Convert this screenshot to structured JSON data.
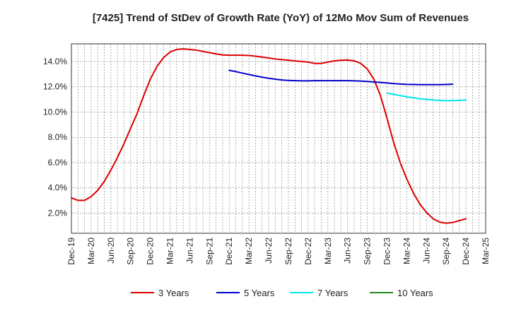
{
  "chart_data": {
    "type": "line",
    "title": "[7425]  Trend of StDev of Growth Rate (YoY) of 12Mo Mov Sum of Revenues",
    "xlabel": "",
    "ylabel": "",
    "ylim": [
      0.4,
      15.4
    ],
    "yticks": [
      {
        "value": 2.0,
        "label": "2.0%"
      },
      {
        "value": 4.0,
        "label": "4.0%"
      },
      {
        "value": 6.0,
        "label": "6.0%"
      },
      {
        "value": 8.0,
        "label": "8.0%"
      },
      {
        "value": 10.0,
        "label": "10.0%"
      },
      {
        "value": 12.0,
        "label": "12.0%"
      },
      {
        "value": 14.0,
        "label": "14.0%"
      }
    ],
    "xticks": [
      "Dec-19",
      "Mar-20",
      "Jun-20",
      "Sep-20",
      "Dec-20",
      "Mar-21",
      "Jun-21",
      "Sep-21",
      "Dec-21",
      "Mar-22",
      "Jun-22",
      "Sep-22",
      "Dec-22",
      "Mar-23",
      "Jun-23",
      "Sep-23",
      "Dec-23",
      "Mar-24",
      "Jun-24",
      "Sep-24",
      "Dec-24",
      "Mar-25"
    ],
    "grid": true,
    "legend_position": "bottom",
    "series": [
      {
        "name": "3 Years",
        "color": "#dd0000",
        "start_index": 0,
        "values": [
          3.2,
          3.0,
          3.0,
          3.3,
          3.8,
          4.5,
          5.4,
          6.4,
          7.5,
          8.7,
          9.9,
          11.3,
          12.6,
          13.6,
          14.3,
          14.75,
          14.95,
          15.0,
          14.95,
          14.9,
          14.8,
          14.7,
          14.6,
          14.52,
          14.5,
          14.5,
          14.5,
          14.48,
          14.42,
          14.35,
          14.28,
          14.2,
          14.15,
          14.1,
          14.05,
          14.0,
          13.95,
          13.85,
          13.85,
          13.95,
          14.05,
          14.1,
          14.12,
          14.05,
          13.85,
          13.4,
          12.6,
          11.3,
          9.5,
          7.6,
          6.0,
          4.7,
          3.6,
          2.7,
          2.05,
          1.55,
          1.28,
          1.2,
          1.25,
          1.4,
          1.55
        ]
      },
      {
        "name": "5 Years",
        "color": "#0000cc",
        "start_index": 24,
        "values": [
          13.3,
          13.2,
          13.08,
          12.97,
          12.86,
          12.76,
          12.67,
          12.6,
          12.54,
          12.5,
          12.48,
          12.47,
          12.47,
          12.48,
          12.48,
          12.48,
          12.48,
          12.48,
          12.48,
          12.47,
          12.45,
          12.42,
          12.38,
          12.34,
          12.3,
          12.25,
          12.22,
          12.19,
          12.18,
          12.17,
          12.17,
          12.17,
          12.17,
          12.18,
          12.2
        ]
      },
      {
        "name": "7 Years",
        "color": "#00e5ee",
        "start_index": 48,
        "values": [
          11.5,
          11.4,
          11.3,
          11.2,
          11.13,
          11.05,
          11.0,
          10.95,
          10.92,
          10.9,
          10.9,
          10.92,
          10.95
        ]
      },
      {
        "name": "10 Years",
        "color": "#228b22",
        "start_index": 0,
        "values": []
      }
    ]
  }
}
